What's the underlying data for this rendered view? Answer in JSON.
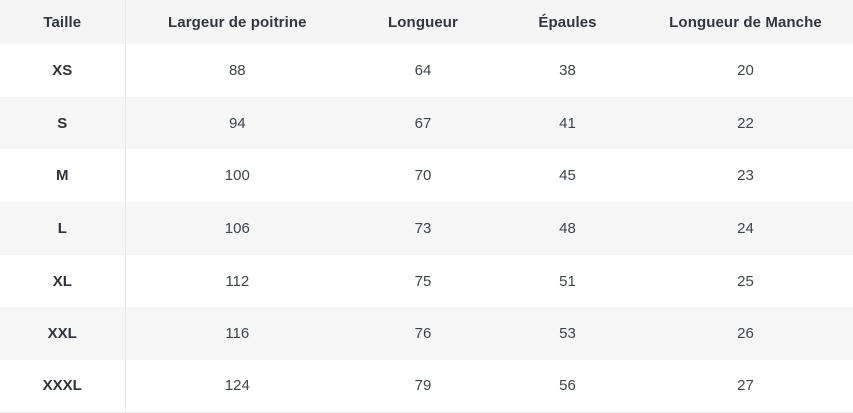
{
  "chart_data": {
    "type": "table",
    "columns": [
      "Taille",
      "Largeur de poitrine",
      "Longueur",
      "Épaules",
      "Longueur de Manche"
    ],
    "rows": [
      {
        "size": "XS",
        "values": [
          "88",
          "64",
          "38",
          "20"
        ]
      },
      {
        "size": "S",
        "values": [
          "94",
          "67",
          "41",
          "22"
        ]
      },
      {
        "size": "M",
        "values": [
          "100",
          "70",
          "45",
          "23"
        ]
      },
      {
        "size": "L",
        "values": [
          "106",
          "73",
          "48",
          "24"
        ]
      },
      {
        "size": "XL",
        "values": [
          "112",
          "75",
          "51",
          "25"
        ]
      },
      {
        "size": "XXL",
        "values": [
          "116",
          "76",
          "53",
          "26"
        ]
      },
      {
        "size": "XXXL",
        "values": [
          "124",
          "79",
          "56",
          "27"
        ]
      }
    ],
    "layout": {
      "striped": true,
      "header_position": "top",
      "first_column_divider": true
    }
  },
  "colors": {
    "header_bg": "#f5f5f5",
    "stripe_row_bg": "#f6f6f6",
    "plain_row_bg": "#ffffff",
    "divider": "#e9e9e9",
    "header_text": "#33373d",
    "value_text": "#3f4449"
  }
}
